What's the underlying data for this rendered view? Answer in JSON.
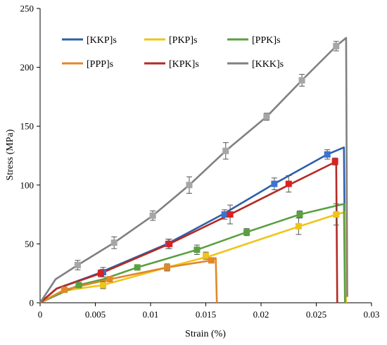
{
  "chart_data": {
    "type": "line",
    "xlabel": "Strain (%)",
    "ylabel": "Stress (MPa)",
    "xlim": [
      0,
      0.03
    ],
    "ylim": [
      0,
      250
    ],
    "x_ticks": [
      "0",
      "0.005",
      "0.01",
      "0.015",
      "0.02",
      "0.025",
      "0.03"
    ],
    "y_ticks": [
      "0",
      "50",
      "100",
      "150",
      "200",
      "250"
    ],
    "grid": false,
    "legend": {
      "position": "top-left inside",
      "columns": 3
    },
    "series": [
      {
        "name": "[KKP]s",
        "color": "#2e5faa",
        "marker_color": "#3b73d1",
        "curve": [
          [
            0,
            0
          ],
          [
            0.0015,
            12
          ],
          [
            0.005,
            24
          ],
          [
            0.0115,
            50
          ],
          [
            0.0165,
            75
          ],
          [
            0.021,
            100
          ],
          [
            0.026,
            126
          ],
          [
            0.0275,
            132
          ],
          [
            0.0276,
            31
          ]
        ],
        "points": [
          {
            "x": 0.0057,
            "y": 26,
            "err": 4
          },
          {
            "x": 0.0116,
            "y": 50,
            "err": 4
          },
          {
            "x": 0.0167,
            "y": 75,
            "err": 4
          },
          {
            "x": 0.0212,
            "y": 101,
            "err": 5
          },
          {
            "x": 0.026,
            "y": 126,
            "err": 4
          }
        ]
      },
      {
        "name": "[PKP]s",
        "color": "#f0c419",
        "marker_color": "#f0c419",
        "curve": [
          [
            0,
            0
          ],
          [
            0.002,
            10
          ],
          [
            0.0057,
            15
          ],
          [
            0.0115,
            30
          ],
          [
            0.0155,
            40
          ],
          [
            0.0235,
            65
          ],
          [
            0.0268,
            75
          ],
          [
            0.0276,
            77
          ],
          [
            0.0277,
            0
          ]
        ],
        "points": [
          {
            "x": 0.0057,
            "y": 15,
            "err": 3
          },
          {
            "x": 0.0115,
            "y": 30,
            "err": 3
          },
          {
            "x": 0.015,
            "y": 40,
            "err": 3
          },
          {
            "x": 0.0234,
            "y": 65,
            "err": 7
          },
          {
            "x": 0.0268,
            "y": 75,
            "err": 9
          }
        ]
      },
      {
        "name": "[PPK]s",
        "color": "#5aa040",
        "marker_color": "#5aa040",
        "curve": [
          [
            0,
            0
          ],
          [
            0.0035,
            15
          ],
          [
            0.0057,
            20
          ],
          [
            0.0088,
            30
          ],
          [
            0.0142,
            45
          ],
          [
            0.0187,
            60
          ],
          [
            0.0235,
            75
          ],
          [
            0.0275,
            84
          ],
          [
            0.0276,
            0
          ]
        ],
        "points": [
          {
            "x": 0.0035,
            "y": 15,
            "err": 2
          },
          {
            "x": 0.0088,
            "y": 30,
            "err": 2
          },
          {
            "x": 0.0142,
            "y": 45,
            "err": 4
          },
          {
            "x": 0.0187,
            "y": 60,
            "err": 3
          },
          {
            "x": 0.0235,
            "y": 75,
            "err": 3
          }
        ]
      },
      {
        "name": "[PPP]s",
        "color": "#e0882a",
        "marker_color": "#e0882a",
        "curve": [
          [
            0,
            0
          ],
          [
            0.0022,
            11
          ],
          [
            0.0063,
            20
          ],
          [
            0.0115,
            30
          ],
          [
            0.0155,
            36
          ],
          [
            0.0159,
            38
          ],
          [
            0.016,
            0
          ]
        ],
        "points": [
          {
            "x": 0.0022,
            "y": 11,
            "err": 1
          },
          {
            "x": 0.0063,
            "y": 20,
            "err": 2
          },
          {
            "x": 0.0115,
            "y": 30,
            "err": 2
          },
          {
            "x": 0.0155,
            "y": 36,
            "err": 2
          }
        ]
      },
      {
        "name": "[KPK]s",
        "color": "#b52a24",
        "marker_color": "#e01f1f",
        "curve": [
          [
            0,
            0
          ],
          [
            0.0015,
            12
          ],
          [
            0.0055,
            25
          ],
          [
            0.0117,
            50
          ],
          [
            0.0172,
            75
          ],
          [
            0.0225,
            100
          ],
          [
            0.0266,
            119
          ],
          [
            0.0268,
            120
          ],
          [
            0.0269,
            0
          ]
        ],
        "points": [
          {
            "x": 0.0055,
            "y": 25,
            "err": 3
          },
          {
            "x": 0.0117,
            "y": 50,
            "err": 4
          },
          {
            "x": 0.0172,
            "y": 75,
            "err": 8
          },
          {
            "x": 0.0225,
            "y": 101,
            "err": 7
          },
          {
            "x": 0.0267,
            "y": 120,
            "err": 3
          }
        ]
      },
      {
        "name": "[KKK]s",
        "color": "#808080",
        "marker_color": "#a6a6a6",
        "curve": [
          [
            0,
            0
          ],
          [
            0.0014,
            20
          ],
          [
            0.0034,
            32
          ],
          [
            0.0067,
            51
          ],
          [
            0.0102,
            74
          ],
          [
            0.0135,
            100
          ],
          [
            0.0168,
            129
          ],
          [
            0.0205,
            158
          ],
          [
            0.0237,
            189
          ],
          [
            0.0268,
            218
          ],
          [
            0.0277,
            225
          ],
          [
            0.0278,
            5
          ]
        ],
        "points": [
          {
            "x": 0.0034,
            "y": 32,
            "err": 4
          },
          {
            "x": 0.0067,
            "y": 51,
            "err": 5
          },
          {
            "x": 0.0102,
            "y": 74,
            "err": 4
          },
          {
            "x": 0.0135,
            "y": 100,
            "err": 7
          },
          {
            "x": 0.0168,
            "y": 129,
            "err": 7
          },
          {
            "x": 0.0205,
            "y": 158,
            "err": 3
          },
          {
            "x": 0.0237,
            "y": 189,
            "err": 5
          },
          {
            "x": 0.0268,
            "y": 218,
            "err": 4
          }
        ]
      }
    ]
  }
}
